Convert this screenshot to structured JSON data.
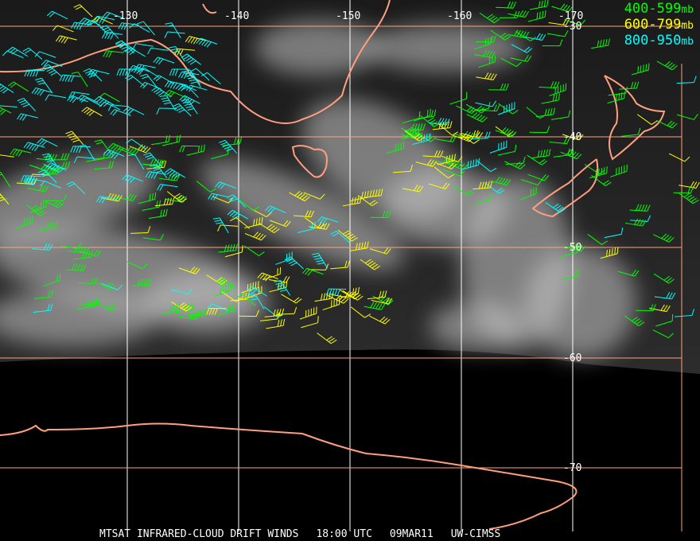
{
  "map": {
    "longitude_labels": [
      "-130",
      "-140",
      "-150",
      "-160",
      "-170"
    ],
    "latitude_labels": [
      "-30",
      "-40",
      "-50",
      "-60",
      "-70"
    ],
    "colors": {
      "coastline": "#ff9f7f",
      "lat_grid": "#ff9f7f",
      "lon_grid": "#ffffff",
      "layer_400_599": "#00ff00",
      "layer_600_799": "#ffff00",
      "layer_800_950": "#00ffff"
    }
  },
  "legend": [
    {
      "range": "400-599",
      "unit": "mb",
      "color": "#00ff00"
    },
    {
      "range": "600-799",
      "unit": "mb",
      "color": "#ffff00"
    },
    {
      "range": "800-950",
      "unit": "mb",
      "color": "#00ffff"
    }
  ],
  "footer": {
    "product": "MTSAT INFRARED-CLOUD DRIFT WINDS",
    "time": "18:00 UTC",
    "date": "09MAR11",
    "source": "UW-CIMSS"
  }
}
